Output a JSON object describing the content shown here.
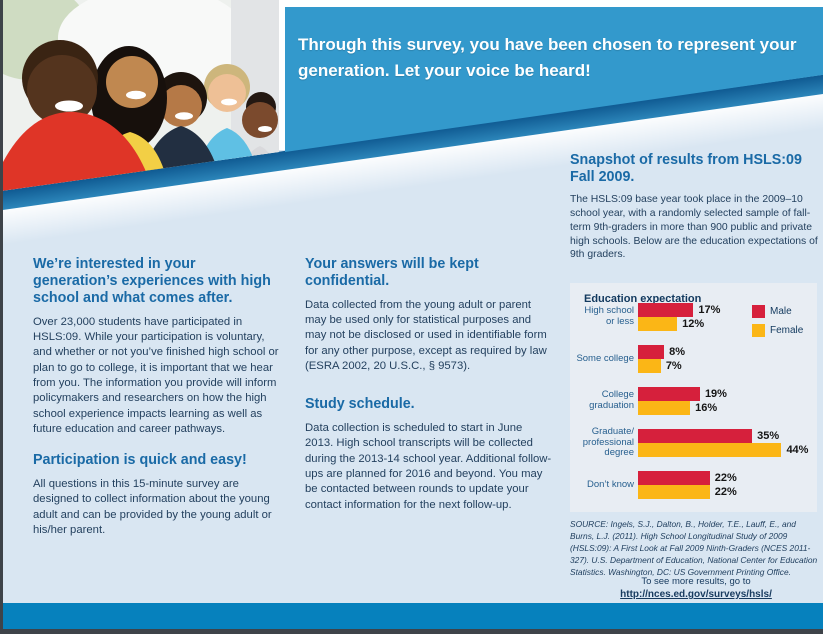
{
  "banner": {
    "headline": "Through this survey, you have been chosen to represent your generation. Let your voice be heard!"
  },
  "sections": {
    "interested": {
      "heading": "We’re interested in your generation’s experiences with high school and what comes after.",
      "body": "Over 23,000 students have participated in HSLS:09. While your participation is voluntary, and whether or not you’ve finished high school or plan to go to college, it is important that we hear from you. The information you provide will inform policymakers and researchers on how the high school experience impacts learning as well as future education and career pathways."
    },
    "participation": {
      "heading": "Participation is quick and easy!",
      "body": "All questions in this 15-minute survey are designed to collect information about the young adult and can be provided by the young adult or his/her parent."
    },
    "confidential": {
      "heading": "Your answers will be kept confidential.",
      "body": "Data collected from the young adult or parent may be used only for statistical purposes and may not be disclosed or used in identifiable form for any other purpose, except as required by law (ESRA 2002, 20 U.S.C., § 9573)."
    },
    "schedule": {
      "heading": "Study schedule.",
      "body": "Data collection is scheduled to start in June 2013. High school transcripts will be collected during the 2013-14 school year. Additional follow-ups are planned for 2016 and beyond. You may be contacted between rounds to update your contact information for the next follow-up."
    },
    "snapshot": {
      "heading": "Snapshot of results from HSLS:09 Fall 2009.",
      "body": "The HSLS:09 base year took place in the 2009–10 school year, with a randomly selected sample of fall-term 9th-graders in more than 900 public and private high schools. Below are the education expectations of 9th graders."
    }
  },
  "chart_data": {
    "type": "bar",
    "orientation": "horizontal",
    "title": "Education expectation",
    "categories": [
      "High school\nor less",
      "Some college",
      "College\ngraduation",
      "Graduate/\nprofessional\ndegree",
      "Don’t know"
    ],
    "series": [
      {
        "name": "Male",
        "color": "#d6203c",
        "values": [
          17,
          8,
          19,
          35,
          22
        ]
      },
      {
        "name": "Female",
        "color": "#fbb616",
        "values": [
          12,
          7,
          16,
          44,
          22
        ]
      }
    ],
    "value_suffix": "%",
    "xlim": [
      0,
      50
    ],
    "legend_position": "top-right",
    "grid": false
  },
  "source": {
    "text": "SOURCE: Ingels, S.J., Dalton, B., Holder, T.E., Lauff, E., and Burns, L.J. (2011). High School Longitudinal Study of 2009 (HSLS:09): A First Look at Fall 2009 Ninth-Graders (NCES 2011-327). U.S. Department of Education, National Center for Education Statistics. Washington, DC: US Government Printing Office."
  },
  "footer_links": {
    "more_results": "To see more results, go to",
    "link": "http://nces.ed.gov/surveys/hsls/"
  },
  "colors": {
    "page_bg": "#d9e6f2",
    "banner_blue": "#3399cc",
    "stripe_blue": "#2c86ba",
    "footer_blue": "#0681bd",
    "panel_bg": "#e8edf3",
    "heading_blue": "#1a6aa6",
    "body_text": "#24415f",
    "category_label": "#28608f",
    "male_red": "#d6203c",
    "female_yellow": "#fbb616",
    "edge_dark": "#3e4349"
  }
}
